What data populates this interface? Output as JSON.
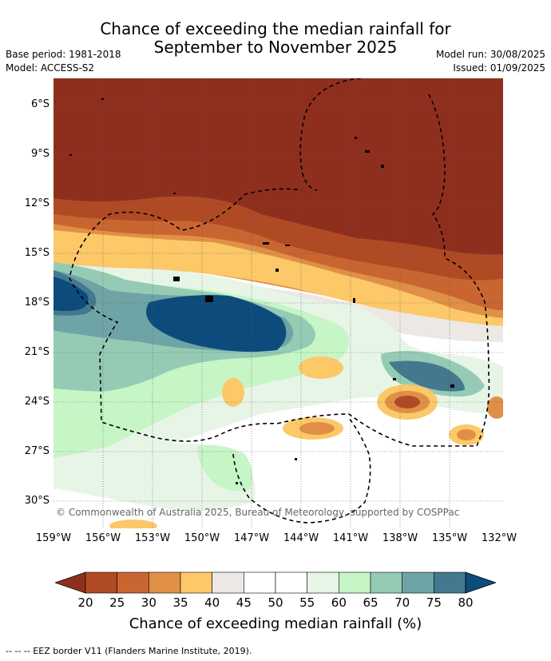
{
  "title_line1": "Chance of exceeding the median rainfall for",
  "title_line2": "September to November 2025",
  "base_period": "Base period: 1981-2018",
  "model": "Model: ACCESS-S2",
  "model_run": "Model run: 30/08/2025",
  "issued": "Issued: 01/09/2025",
  "copyright": "© Commonwealth of Australia 2025, Bureau of Meteorology, supported by COSPPac",
  "lat_labels": [
    "6°S",
    "9°S",
    "12°S",
    "15°S",
    "18°S",
    "21°S",
    "24°S",
    "27°S",
    "30°S"
  ],
  "lon_labels": [
    "159°W",
    "156°W",
    "153°W",
    "150°W",
    "147°W",
    "144°W",
    "141°W",
    "138°W",
    "135°W",
    "132°W"
  ],
  "colorbar": {
    "title": "Chance of exceeding median rainfall (%)",
    "labels": [
      "20",
      "25",
      "30",
      "35",
      "40",
      "45",
      "50",
      "55",
      "60",
      "65",
      "70",
      "75",
      "80"
    ],
    "colors": [
      "#8e2f1e",
      "#b04a25",
      "#c96530",
      "#e09046",
      "#fcc868",
      "#ede8e4",
      "#ffffff",
      "#ffffff",
      "#e7f5e7",
      "#c6f5c6",
      "#95cbb4",
      "#6ea4a6",
      "#43788f",
      "#0e4b7d"
    ]
  },
  "footer": "--  --  -- EEZ border V11 (Flanders Marine Institute, 2019)."
}
